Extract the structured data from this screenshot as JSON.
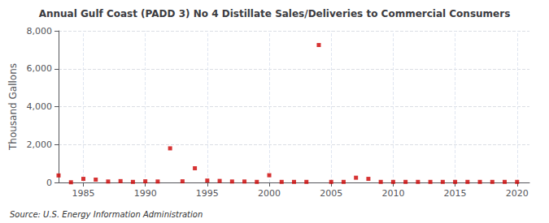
{
  "chart_data": {
    "type": "scatter",
    "title": "Annual Gulf Coast (PADD 3) No 4 Distillate Sales/Deliveries to Commercial Consumers",
    "ylabel": "Thousand Gallons",
    "source": "Source: U.S. Energy Information Administration",
    "x": [
      1983,
      1984,
      1985,
      1986,
      1987,
      1988,
      1989,
      1990,
      1991,
      1992,
      1993,
      1994,
      1995,
      1996,
      1997,
      1998,
      1999,
      2000,
      2001,
      2002,
      2003,
      2004,
      2005,
      2006,
      2007,
      2008,
      2009,
      2010,
      2011,
      2012,
      2013,
      2014,
      2015,
      2016,
      2017,
      2018,
      2019,
      2020
    ],
    "values": [
      370,
      10,
      190,
      150,
      50,
      70,
      30,
      60,
      50,
      1800,
      60,
      750,
      100,
      80,
      50,
      50,
      30,
      380,
      30,
      30,
      30,
      7250,
      30,
      30,
      250,
      190,
      30,
      30,
      30,
      30,
      30,
      30,
      30,
      30,
      30,
      30,
      30,
      30
    ],
    "color": "#cc0000",
    "marker": "square",
    "xlim": [
      1983,
      2021
    ],
    "ylim": [
      0,
      8000
    ],
    "xticks": [
      1985,
      1990,
      1995,
      2000,
      2005,
      2010,
      2015,
      2020
    ],
    "yticks": [
      0,
      {
        "value": 2000,
        "label": "2,000"
      },
      {
        "value": 4000,
        "label": "4,000"
      },
      {
        "value": 6000,
        "label": "6,000"
      },
      {
        "value": 8000,
        "label": "8,000"
      }
    ],
    "grid": true
  }
}
